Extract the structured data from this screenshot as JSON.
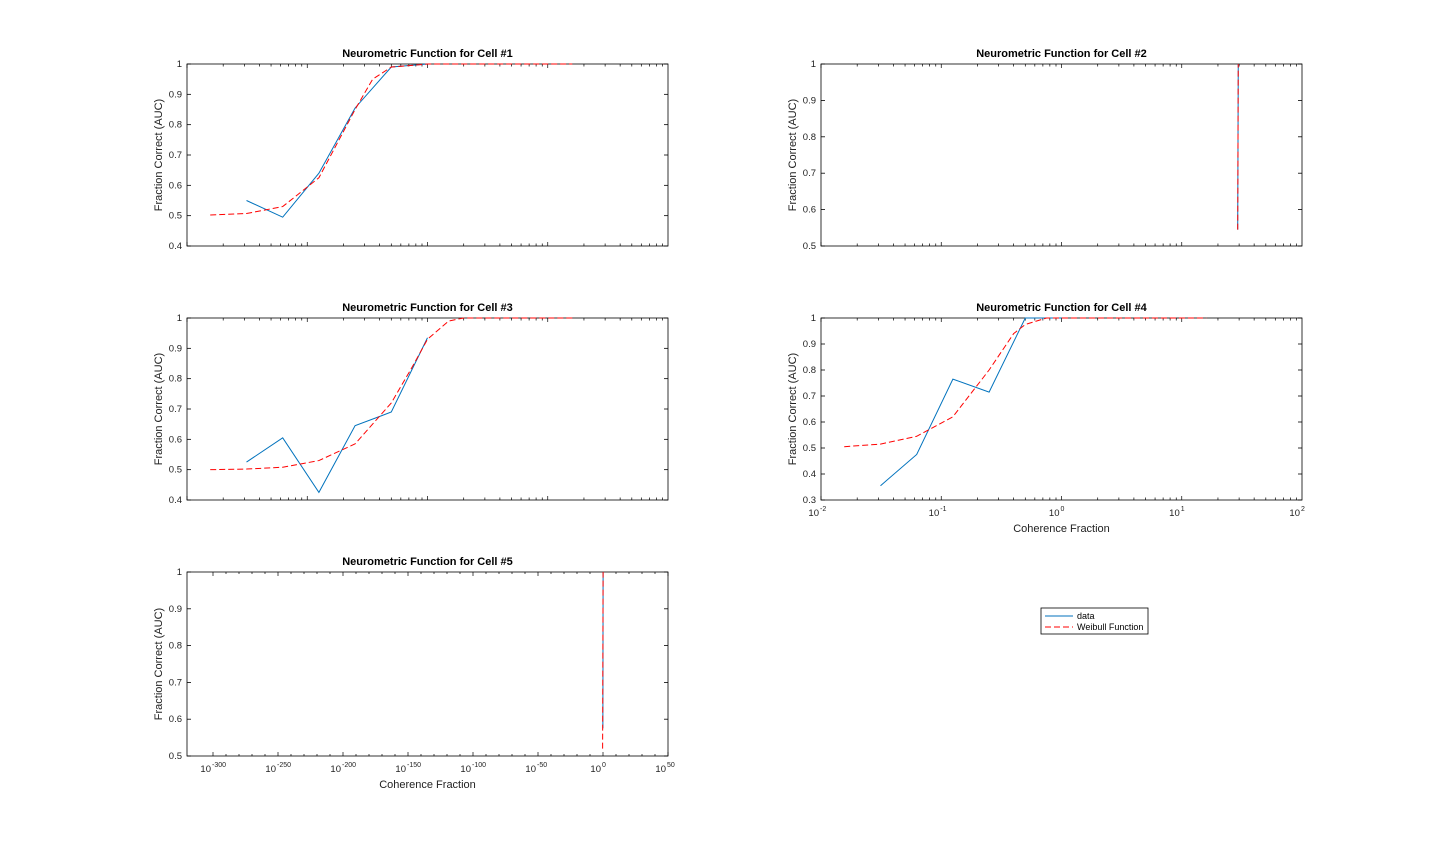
{
  "chart_data": [
    {
      "type": "line",
      "title": "Neurometric Function for Cell #1",
      "ylabel": "Fraction Correct (AUC)",
      "xlabel": "",
      "xscale": "log",
      "xlim_exp": [
        -2,
        2
      ],
      "xticks": [],
      "ylim": [
        0.4,
        1
      ],
      "yticks": [
        "0.4",
        "0.5",
        "0.6",
        "0.7",
        "0.8",
        "0.9",
        "1"
      ],
      "series": [
        {
          "name": "data",
          "kind": "data",
          "x": [
            0.03125,
            0.0625,
            0.125,
            0.25,
            0.5,
            1
          ],
          "y": [
            0.55,
            0.495,
            0.64,
            0.855,
            0.99,
            1.0
          ]
        },
        {
          "name": "Weibull Function",
          "kind": "fit",
          "x": [
            0.0156,
            0.03125,
            0.0625,
            0.125,
            0.25,
            0.35,
            0.5,
            1,
            2,
            4,
            8,
            16
          ],
          "y": [
            0.502,
            0.507,
            0.53,
            0.625,
            0.85,
            0.95,
            0.99,
            1.0,
            1.0,
            1.0,
            1.0,
            1.0
          ]
        }
      ]
    },
    {
      "type": "line",
      "title": "Neurometric Function for Cell #2",
      "ylabel": "Fraction Correct (AUC)",
      "xlabel": "",
      "xscale": "log",
      "xlim_exp": [
        -2,
        2
      ],
      "xticks": [],
      "ylim": [
        0.5,
        1
      ],
      "yticks": [
        "0.5",
        "0.6",
        "0.7",
        "0.8",
        "0.9",
        "1"
      ],
      "series": [
        {
          "name": "data",
          "kind": "data",
          "x": [
            29.2,
            29.5
          ],
          "y": [
            0.545,
            1.0
          ]
        },
        {
          "name": "Weibull Function",
          "kind": "fit",
          "x": [
            29.2,
            29.5
          ],
          "y": [
            0.545,
            1.0
          ]
        }
      ]
    },
    {
      "type": "line",
      "title": "Neurometric Function for Cell #3",
      "ylabel": "Fraction Correct (AUC)",
      "xlabel": "",
      "xscale": "log",
      "xlim_exp": [
        -2,
        2
      ],
      "xticks": [],
      "ylim": [
        0.4,
        1
      ],
      "yticks": [
        "0.4",
        "0.5",
        "0.6",
        "0.7",
        "0.8",
        "0.9",
        "1"
      ],
      "series": [
        {
          "name": "data",
          "kind": "data",
          "x": [
            0.03125,
            0.0625,
            0.125,
            0.25,
            0.5,
            1
          ],
          "y": [
            0.525,
            0.605,
            0.425,
            0.645,
            0.69,
            0.935
          ]
        },
        {
          "name": "Weibull Function",
          "kind": "fit",
          "x": [
            0.0156,
            0.03125,
            0.0625,
            0.125,
            0.25,
            0.5,
            0.75,
            1,
            1.5,
            2,
            4,
            8,
            16
          ],
          "y": [
            0.5,
            0.502,
            0.508,
            0.53,
            0.585,
            0.72,
            0.84,
            0.93,
            0.99,
            1.0,
            1.0,
            1.0,
            1.0
          ]
        }
      ]
    },
    {
      "type": "line",
      "title": "Neurometric Function for Cell #4",
      "ylabel": "Fraction Correct (AUC)",
      "xlabel": "Coherence Fraction",
      "xscale": "log",
      "xlim_exp": [
        -2,
        2
      ],
      "xticks": [
        {
          "base": "10",
          "exp": "-2",
          "value": -2
        },
        {
          "base": "10",
          "exp": "-1",
          "value": -1
        },
        {
          "base": "10",
          "exp": "0",
          "value": 0
        },
        {
          "base": "10",
          "exp": "1",
          "value": 1
        },
        {
          "base": "10",
          "exp": "2",
          "value": 2
        }
      ],
      "ylim": [
        0.3,
        1
      ],
      "yticks": [
        "0.3",
        "0.4",
        "0.5",
        "0.6",
        "0.7",
        "0.8",
        "0.9",
        "1"
      ],
      "series": [
        {
          "name": "data",
          "kind": "data",
          "x": [
            0.03125,
            0.0625,
            0.125,
            0.25,
            0.5,
            1
          ],
          "y": [
            0.355,
            0.475,
            0.765,
            0.715,
            1.0,
            1.0
          ]
        },
        {
          "name": "Weibull Function",
          "kind": "fit",
          "x": [
            0.0156,
            0.03125,
            0.0625,
            0.125,
            0.25,
            0.4,
            0.5,
            0.75,
            1,
            2,
            4,
            8,
            16
          ],
          "y": [
            0.505,
            0.515,
            0.545,
            0.62,
            0.8,
            0.94,
            0.975,
            1.0,
            1.0,
            1.0,
            1.0,
            1.0,
            1.0
          ]
        }
      ]
    },
    {
      "type": "line",
      "title": "Neurometric Function for Cell #5",
      "ylabel": "Fraction Correct (AUC)",
      "xlabel": "Coherence Fraction",
      "xscale": "log",
      "xlim_exp": [
        -320,
        50
      ],
      "xticks": [
        {
          "base": "10",
          "exp": "-300",
          "value": -300
        },
        {
          "base": "10",
          "exp": "-250",
          "value": -250
        },
        {
          "base": "10",
          "exp": "-200",
          "value": -200
        },
        {
          "base": "10",
          "exp": "-150",
          "value": -150
        },
        {
          "base": "10",
          "exp": "-100",
          "value": -100
        },
        {
          "base": "10",
          "exp": "-50",
          "value": -50
        },
        {
          "base": "10",
          "exp": "0",
          "value": 0
        },
        {
          "base": "10",
          "exp": "50",
          "value": 50
        }
      ],
      "ylim": [
        0.5,
        1
      ],
      "yticks": [
        "0.5",
        "0.6",
        "0.7",
        "0.8",
        "0.9",
        "1"
      ],
      "series": [
        {
          "name": "data",
          "kind": "data",
          "x": [
            0.8,
            1.2
          ],
          "y": [
            0.575,
            1.0
          ]
        },
        {
          "name": "Weibull Function",
          "kind": "fit",
          "x": [
            0.5,
            1.2
          ],
          "y": [
            0.52,
            1.0
          ]
        }
      ]
    }
  ],
  "legend": {
    "entries": [
      {
        "label": "data",
        "kind": "data"
      },
      {
        "label": "Weibull Function",
        "kind": "fit"
      }
    ],
    "placement": "right-middle"
  },
  "colors": {
    "data": "#0072BD",
    "fit": "#FF0000",
    "axes": "#000000"
  }
}
